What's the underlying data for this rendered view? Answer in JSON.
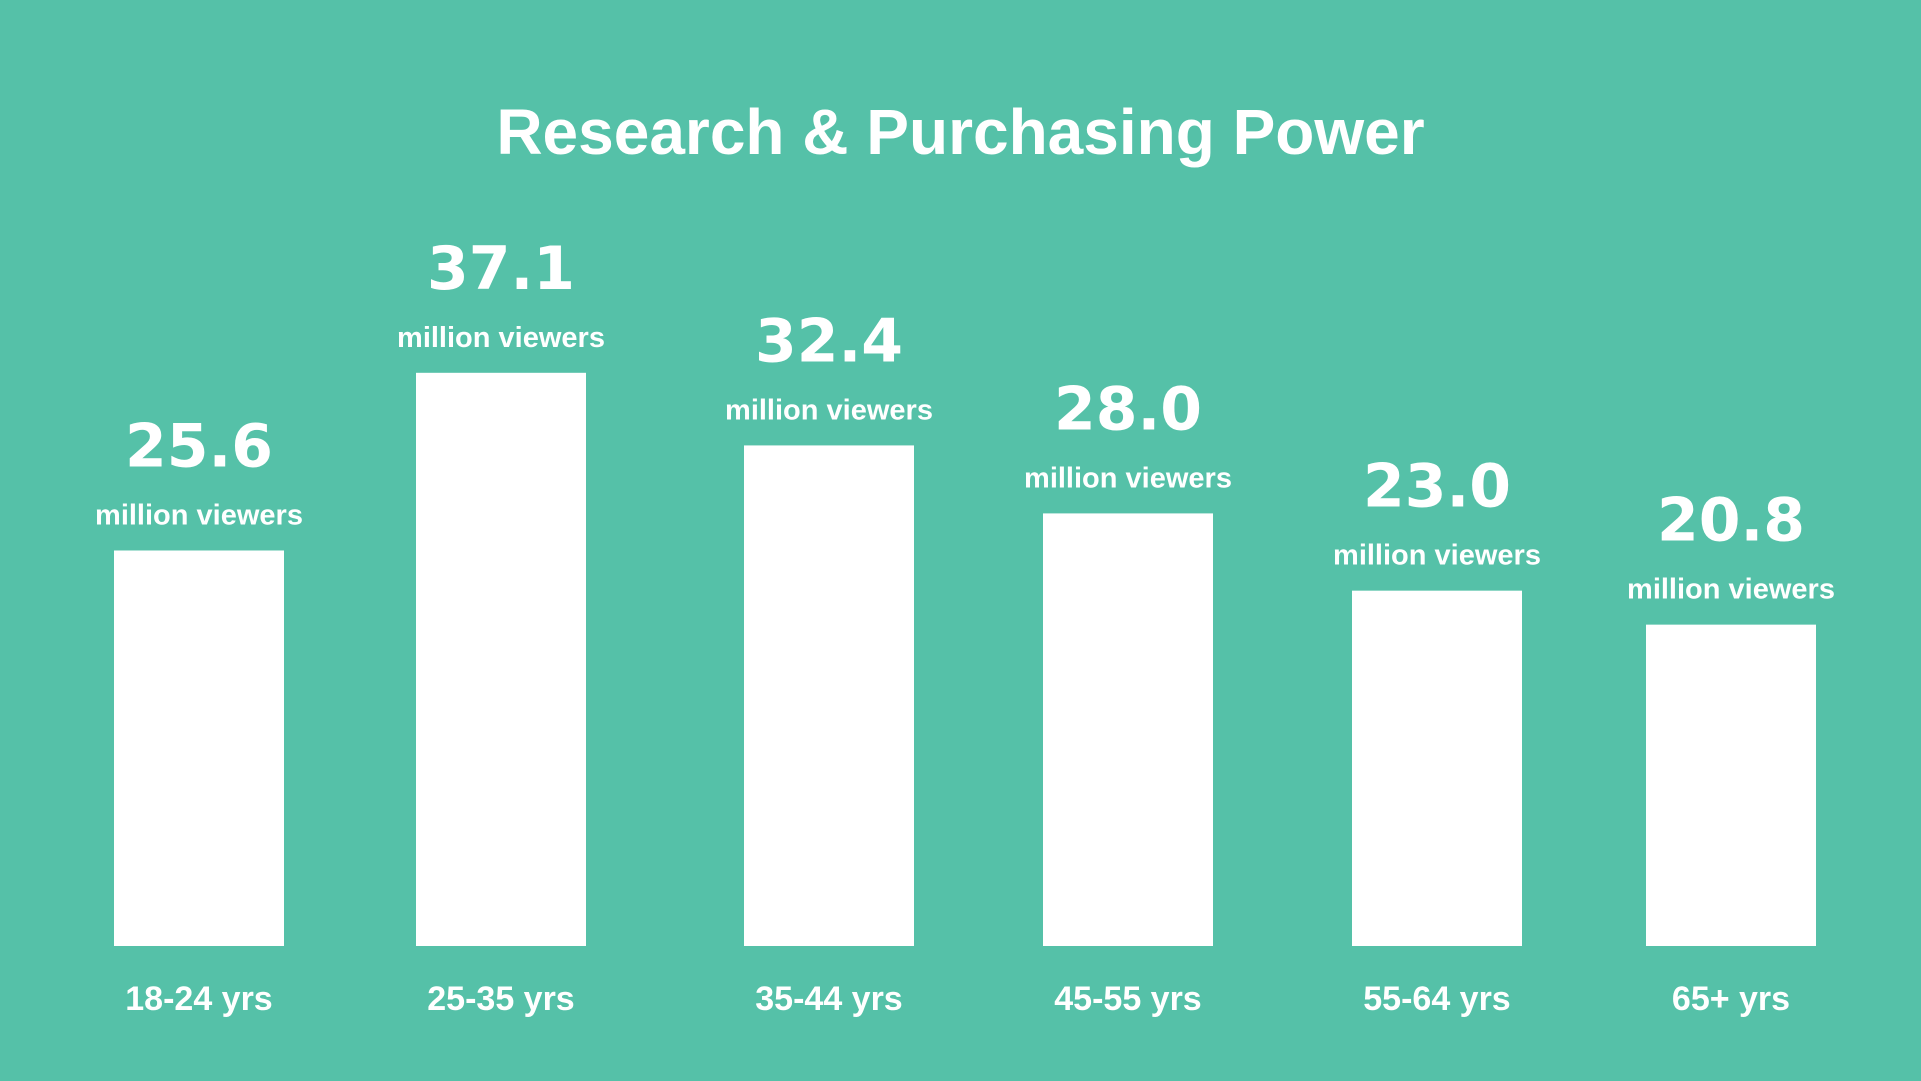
{
  "colors": {
    "background": "#55c1a8",
    "bar": "#ffffff",
    "text": "#ffffff"
  },
  "chart_data": {
    "type": "bar",
    "title": "Research & Purchasing Power",
    "categories": [
      "18-24 yrs",
      "25-35 yrs",
      "35-44 yrs",
      "45-55 yrs",
      "55-64 yrs",
      "65+ yrs"
    ],
    "values": [
      25.6,
      37.1,
      32.4,
      28.0,
      23.0,
      20.8
    ],
    "value_labels": [
      "25.6",
      "37.1",
      "32.4",
      "28.0",
      "23.0",
      "20.8"
    ],
    "unit_label": "million viewers",
    "xlabel": "",
    "ylabel": "",
    "grid": false,
    "legend": "none"
  }
}
